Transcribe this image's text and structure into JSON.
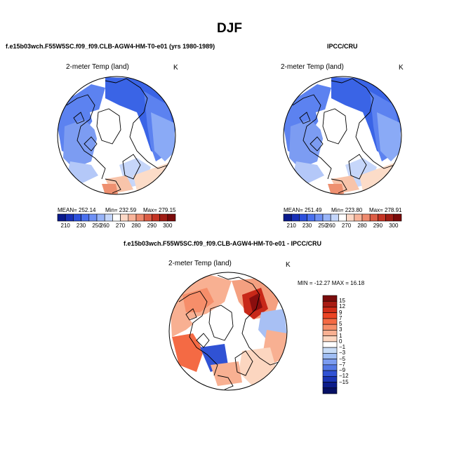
{
  "title": "DJF",
  "panels": {
    "model": {
      "title": "f.e15b03wch.F55W5SC.f09_f09.CLB-AGW4-HM-T0-e01 (yrs 1980-1989)",
      "map_label": "2-meter Temp (land)",
      "unit": "K",
      "mean": "MEAN= 252.14",
      "min": "Min= 232.59",
      "max": "Max= 279.15"
    },
    "obs": {
      "title": "IPCC/CRU",
      "map_label": "2-meter Temp (land)",
      "unit": "K",
      "mean": "MEAN= 251.49",
      "min": "Min= 223.80",
      "max": "Max= 278.91"
    },
    "diff": {
      "title": "f.e15b03wch.F55W5SC.f09_f09.CLB-AGW4-HM-T0-e01 - IPCC/CRU",
      "map_label": "2-meter Temp (land)",
      "unit": "K",
      "minmax": "MIN = -12.27 MAX =  16.18"
    }
  },
  "abs_colorbar": {
    "colors": [
      "#0a1a8c",
      "#1830b8",
      "#2c50dc",
      "#4a70ee",
      "#6e90f4",
      "#98b4f8",
      "#c4d6fb",
      "#ffffff",
      "#fcd8c6",
      "#f8b49a",
      "#ee8a6e",
      "#dc5c44",
      "#c43424",
      "#a01c14",
      "#7a0a0a"
    ],
    "ticks": [
      "210",
      "230",
      "250",
      "260",
      "270",
      "280",
      "290",
      "300"
    ]
  },
  "diff_colorbar": {
    "colors": [
      "#7a0c0c",
      "#a81c14",
      "#d02c18",
      "#ec4424",
      "#f46a44",
      "#f68e6a",
      "#f8b092",
      "#fcd6c0",
      "#ffffff",
      "#c8dcf6",
      "#a0bef4",
      "#7c9cf0",
      "#5478e4",
      "#3052d4",
      "#1a34b4",
      "#0c1c8a",
      "#061064"
    ],
    "ticks": [
      "15",
      "12",
      "9",
      "7",
      "5",
      "3",
      "1",
      "0",
      "−1",
      "−3",
      "−5",
      "−7",
      "−9",
      "−12",
      "−15"
    ]
  }
}
